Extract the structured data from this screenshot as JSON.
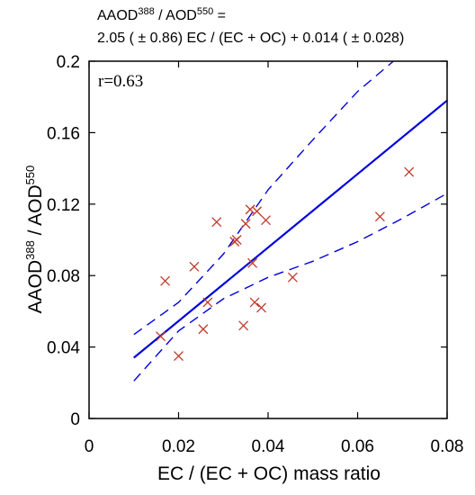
{
  "chart_data": {
    "type": "scatter",
    "title_line1": "AAOD388 / AOD550 =",
    "title_line1_parts": {
      "a": "AAOD",
      "a_sup": "388",
      "sep": " / AOD",
      "b_sup": "550",
      "tail": " ="
    },
    "title_line2": "2.05 ( ± 0.86) EC / (EC + OC) + 0.014 ( ± 0.028)",
    "xlabel": "EC / (EC + OC) mass ratio",
    "ylabel_parts": {
      "a": "AAOD",
      "a_sup": "388",
      "sep": " / AOD",
      "b_sup": "550"
    },
    "annotation": "r=0.63",
    "xlim": [
      0,
      0.08
    ],
    "ylim": [
      0,
      0.2
    ],
    "x_ticks": [
      0,
      0.02,
      0.04,
      0.06,
      0.08
    ],
    "x_tick_labels": [
      "0",
      "0.02",
      "0.04",
      "0.06",
      "0.08"
    ],
    "y_ticks": [
      0,
      0.04,
      0.08,
      0.12,
      0.16,
      0.2
    ],
    "y_tick_labels": [
      "0",
      "0.04",
      "0.08",
      "0.12",
      "0.16",
      "0.2"
    ],
    "grid": false,
    "marker": "x",
    "marker_color": "#c0392b",
    "line_color": "#0000dd",
    "points": [
      {
        "x": 0.016,
        "y": 0.046
      },
      {
        "x": 0.017,
        "y": 0.077
      },
      {
        "x": 0.02,
        "y": 0.035
      },
      {
        "x": 0.0235,
        "y": 0.085
      },
      {
        "x": 0.0255,
        "y": 0.05
      },
      {
        "x": 0.0265,
        "y": 0.065
      },
      {
        "x": 0.0285,
        "y": 0.11
      },
      {
        "x": 0.0325,
        "y": 0.099
      },
      {
        "x": 0.033,
        "y": 0.1
      },
      {
        "x": 0.0345,
        "y": 0.052
      },
      {
        "x": 0.035,
        "y": 0.109
      },
      {
        "x": 0.036,
        "y": 0.117
      },
      {
        "x": 0.0365,
        "y": 0.087
      },
      {
        "x": 0.037,
        "y": 0.065
      },
      {
        "x": 0.0375,
        "y": 0.116
      },
      {
        "x": 0.0385,
        "y": 0.062
      },
      {
        "x": 0.0395,
        "y": 0.111
      },
      {
        "x": 0.0455,
        "y": 0.079
      },
      {
        "x": 0.065,
        "y": 0.113
      },
      {
        "x": 0.0715,
        "y": 0.138
      }
    ],
    "regression": {
      "x": [
        0.01,
        0.08
      ],
      "y": [
        0.034,
        0.178
      ]
    },
    "upper_band": {
      "x": [
        0.01,
        0.02,
        0.03,
        0.035,
        0.04,
        0.05,
        0.06,
        0.068
      ],
      "y": [
        0.047,
        0.065,
        0.092,
        0.11,
        0.128,
        0.156,
        0.183,
        0.2
      ]
    },
    "lower_band": {
      "x": [
        0.01,
        0.02,
        0.03,
        0.04,
        0.05,
        0.06,
        0.07,
        0.08
      ],
      "y": [
        0.021,
        0.049,
        0.067,
        0.079,
        0.088,
        0.099,
        0.112,
        0.126
      ]
    }
  }
}
